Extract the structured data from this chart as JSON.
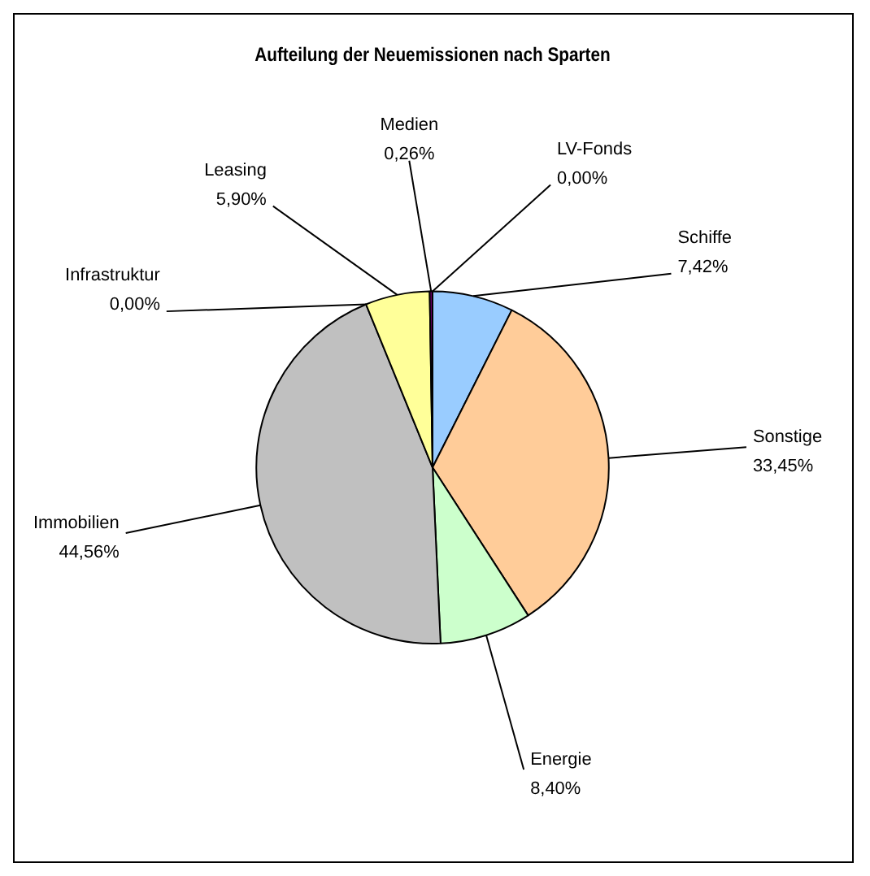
{
  "chart_data": {
    "type": "pie",
    "title": "Aufteilung der Neuemissionen nach Sparten",
    "categories": [
      "LV-Fonds",
      "Schiffe",
      "Sonstige",
      "Energie",
      "Immobilien",
      "Infrastruktur",
      "Leasing",
      "Medien"
    ],
    "values": [
      0,
      7.42,
      33.45,
      8.4,
      44.56,
      0,
      5.9,
      0.26
    ],
    "colors": [
      "#ff8080",
      "#99ccff",
      "#ffcc99",
      "#ccffcc",
      "#c0c0c0",
      "#993366",
      "#ffff99",
      "#660066"
    ],
    "value_labels": [
      "0,00%",
      "7,42%",
      "33,45%",
      "8,40%",
      "44,56%",
      "0,00%",
      "5,90%",
      "0,26%"
    ],
    "legend": false
  }
}
